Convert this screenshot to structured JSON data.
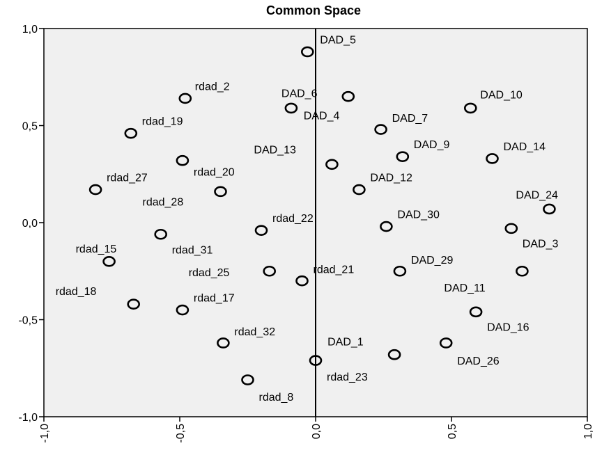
{
  "chart_data": {
    "type": "scatter",
    "title": "Common Space",
    "xlabel": "",
    "ylabel": "",
    "xlim": [
      -1.0,
      1.0
    ],
    "ylim": [
      -1.0,
      1.0
    ],
    "x_ticks": [
      -1.0,
      -0.5,
      0.0,
      0.5,
      1.0
    ],
    "y_ticks": [
      -1.0,
      -0.5,
      0.0,
      0.5,
      1.0
    ],
    "x_tick_labels": [
      "-1,0",
      "-0,5",
      "0,0",
      "0,5",
      "1,0"
    ],
    "y_tick_labels": [
      "-1,0",
      "-0,5",
      "0,0",
      "0,5",
      "1,0"
    ],
    "grid": false,
    "background_color": "#f0f0f0",
    "points": [
      {
        "label": "DAD_5",
        "x": -0.03,
        "y": 0.88
      },
      {
        "label": "DAD_6",
        "x": -0.09,
        "y": 0.59
      },
      {
        "label": "DAD_10",
        "x": 0.57,
        "y": 0.59
      },
      {
        "label": "DAD_4",
        "x": 0.12,
        "y": 0.65
      },
      {
        "label": "DAD_7",
        "x": 0.24,
        "y": 0.48
      },
      {
        "label": "DAD_9",
        "x": 0.32,
        "y": 0.34
      },
      {
        "label": "DAD_14",
        "x": 0.65,
        "y": 0.33
      },
      {
        "label": "DAD_13",
        "x": 0.06,
        "y": 0.3
      },
      {
        "label": "DAD_12",
        "x": 0.16,
        "y": 0.17
      },
      {
        "label": "DAD_24",
        "x": 0.86,
        "y": 0.07
      },
      {
        "label": "DAD_30",
        "x": 0.26,
        "y": -0.02
      },
      {
        "label": "DAD_3",
        "x": 0.72,
        "y": -0.03
      },
      {
        "label": "DAD_29",
        "x": 0.31,
        "y": -0.25
      },
      {
        "label": "DAD_11",
        "x": 0.76,
        "y": -0.25
      },
      {
        "label": "DAD_16",
        "x": 0.59,
        "y": -0.46
      },
      {
        "label": "DAD_1",
        "x": 0.29,
        "y": -0.68
      },
      {
        "label": "DAD_26",
        "x": 0.48,
        "y": -0.62
      },
      {
        "label": "rdad_2",
        "x": -0.48,
        "y": 0.64
      },
      {
        "label": "rdad_19",
        "x": -0.68,
        "y": 0.46
      },
      {
        "label": "rdad_20",
        "x": -0.49,
        "y": 0.32
      },
      {
        "label": "rdad_27",
        "x": -0.81,
        "y": 0.17
      },
      {
        "label": "rdad_28",
        "x": -0.35,
        "y": 0.16
      },
      {
        "label": "rdad_22",
        "x": -0.2,
        "y": -0.04
      },
      {
        "label": "rdad_31",
        "x": -0.57,
        "y": -0.06
      },
      {
        "label": "rdad_15",
        "x": -0.76,
        "y": -0.2
      },
      {
        "label": "rdad_25",
        "x": -0.17,
        "y": -0.25
      },
      {
        "label": "rdad_21",
        "x": -0.05,
        "y": -0.3
      },
      {
        "label": "rdad_18",
        "x": -0.67,
        "y": -0.42
      },
      {
        "label": "rdad_17",
        "x": -0.49,
        "y": -0.45
      },
      {
        "label": "rdad_32",
        "x": -0.34,
        "y": -0.62
      },
      {
        "label": "rdad_23",
        "x": 0.0,
        "y": -0.71
      },
      {
        "label": "rdad_8",
        "x": -0.25,
        "y": -0.81
      }
    ]
  }
}
